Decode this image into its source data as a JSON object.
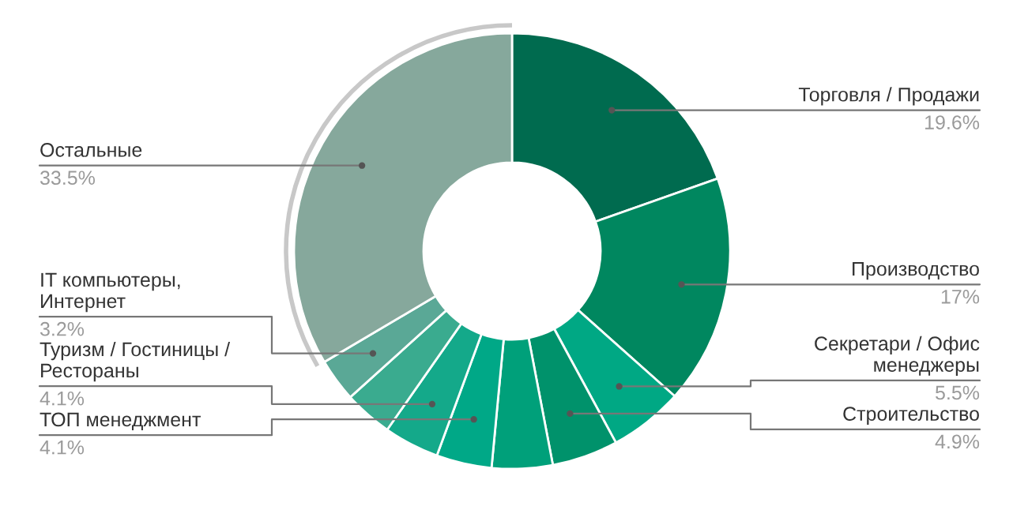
{
  "chart_data": {
    "type": "donut",
    "categories": [
      "Торговля / Продажи",
      "Производство",
      "Секретари / Офис\nменеджеры",
      "Строительство",
      null,
      "ТОП менеджмент",
      "Туризм / Гостиницы /\nРестораны",
      null,
      "IT компьютеры,\nИнтернет",
      "Остальные"
    ],
    "values": [
      19.6,
      17,
      5.5,
      4.9,
      4.5,
      4.1,
      4.1,
      3.6,
      3.2,
      33.5
    ],
    "value_labels": [
      "19.6%",
      "17%",
      "5.5%",
      "4.9%",
      null,
      "4.1%",
      "4.1%",
      null,
      "3.2%",
      "33.5%"
    ],
    "colors": [
      "#006b4f",
      "#00875f",
      "#00a884",
      "#00926b",
      "#00a07a",
      "#00a887",
      "#14a98a",
      "#3aab8f",
      "#5aa896",
      "#86a89c"
    ],
    "legend": false
  }
}
